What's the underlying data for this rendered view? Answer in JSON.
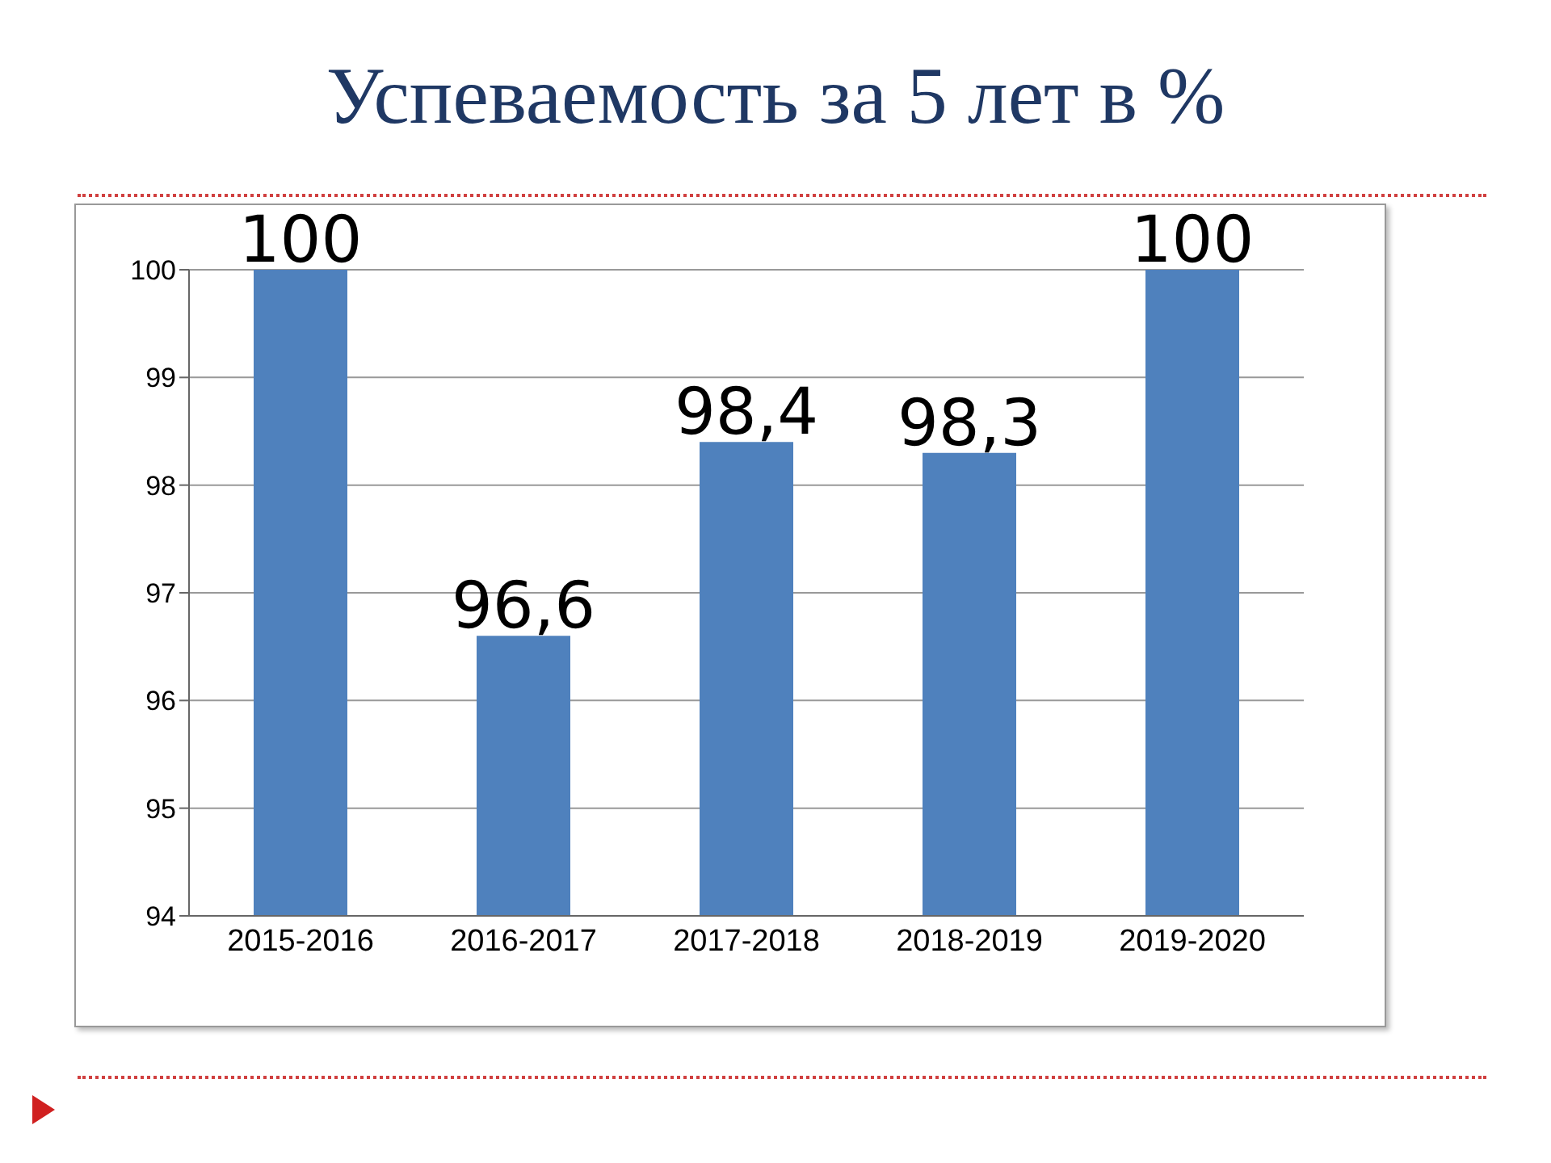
{
  "chart_data": {
    "type": "bar",
    "title": "Успеваемость за 5 лет в %",
    "categories": [
      "2015-2016",
      "2016-2017",
      "2017-2018",
      "2018-2019",
      "2019-2020"
    ],
    "values": [
      100,
      96.6,
      98.4,
      98.3,
      100
    ],
    "value_labels": [
      "100",
      "96,6",
      "98,4",
      "98,3",
      "100"
    ],
    "color": "#4f81bd",
    "ylim": [
      94,
      100
    ],
    "yticks": [
      94,
      95,
      96,
      97,
      98,
      99,
      100
    ],
    "grid": "y"
  }
}
